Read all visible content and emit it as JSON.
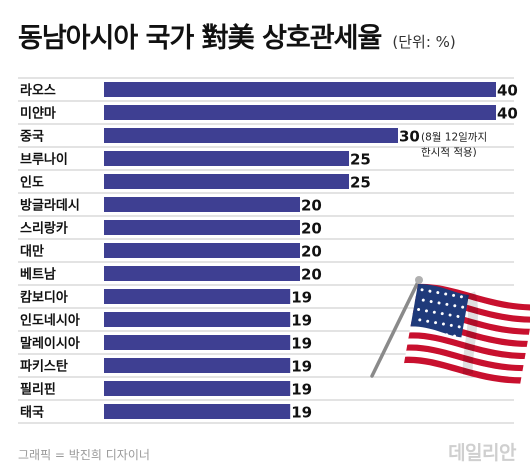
{
  "header": {
    "title": "동남아시아 국가 對美 상호관세율",
    "unit": "(단위: %)"
  },
  "chart_data": {
    "type": "bar",
    "orientation": "horizontal",
    "title": "동남아시아 국가 對美 상호관세율",
    "unit": "(단위: %)",
    "xlim": [
      0,
      40
    ],
    "grid": false,
    "categories": [
      "라오스",
      "미얀마",
      "중국",
      "브루나이",
      "인도",
      "방글라데시",
      "스리랑카",
      "대만",
      "베트남",
      "캄보디아",
      "인도네시아",
      "말레이시아",
      "파키스탄",
      "필리핀",
      "태국"
    ],
    "values": [
      40,
      40,
      30,
      25,
      25,
      20,
      20,
      20,
      20,
      19,
      19,
      19,
      19,
      19,
      19
    ],
    "annotations": [
      {
        "category": "중국",
        "lines": [
          "(8월 12일까지",
          "한시적 적용)"
        ]
      }
    ],
    "colors": {
      "bar": "#3e3f92",
      "separator": "#c7c7c7",
      "label": "#111111"
    }
  },
  "footer": {
    "credit": "그래픽 = 박진희 디자이너",
    "logo": "데일리안"
  },
  "illustration": {
    "icon": "us-flag-icon"
  }
}
